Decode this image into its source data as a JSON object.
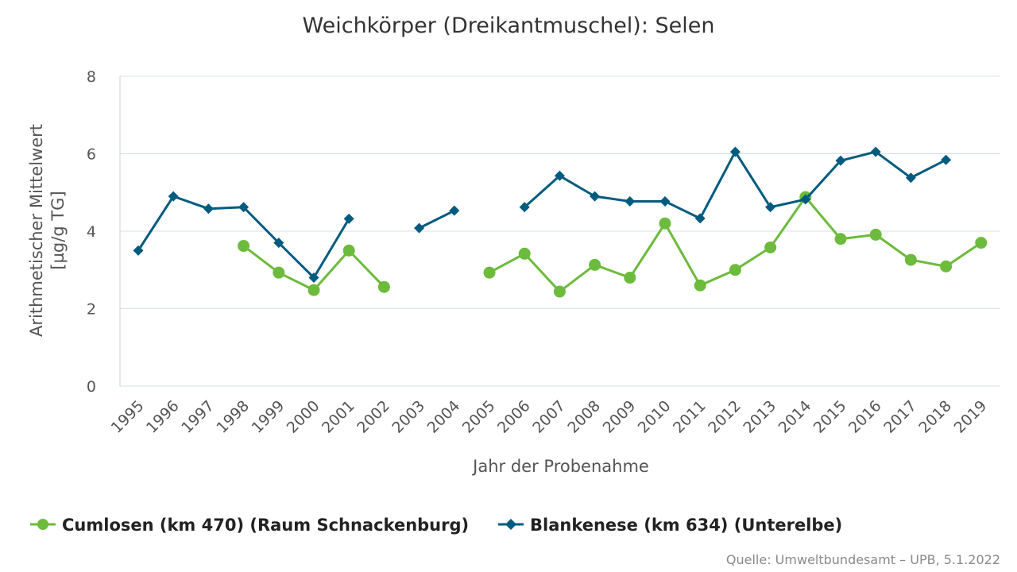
{
  "chart_data": {
    "type": "line",
    "title": "Weichkörper (Dreikantmuschel): Selen",
    "xlabel": "Jahr der Probenahme",
    "ylabel_line1": "Arithmetischer Mittelwert",
    "ylabel_line2": "[µg/g TG]",
    "ylim": [
      0,
      8
    ],
    "yticks": [
      0,
      2,
      4,
      6,
      8
    ],
    "grid": true,
    "categories": [
      "1995",
      "1996",
      "1997",
      "1998",
      "1999",
      "2000",
      "2001",
      "2002",
      "2003",
      "2004",
      "2005",
      "2006",
      "2007",
      "2008",
      "2009",
      "2010",
      "2011",
      "2012",
      "2013",
      "2014",
      "2015",
      "2016",
      "2017",
      "2018",
      "2019"
    ],
    "series": [
      {
        "name": "Cumlosen (km 470) (Raum Schnackenburg)",
        "color": "#6cbb3c",
        "marker": "circle",
        "values": [
          null,
          null,
          null,
          3.62,
          2.93,
          2.48,
          3.5,
          2.56,
          null,
          null,
          2.93,
          3.42,
          2.44,
          3.13,
          2.8,
          4.2,
          2.6,
          3.0,
          3.58,
          4.88,
          3.8,
          3.91,
          3.26,
          3.09,
          3.7
        ]
      },
      {
        "name": "Blankenese (km 634) (Unterelbe)",
        "color": "#005b7f",
        "marker": "diamond",
        "values": [
          3.5,
          4.9,
          4.58,
          4.62,
          3.7,
          2.8,
          4.32,
          null,
          4.08,
          4.53,
          null,
          4.62,
          5.43,
          4.9,
          4.77,
          4.77,
          4.33,
          6.05,
          4.62,
          4.82,
          5.82,
          6.05,
          5.38,
          5.84,
          null
        ]
      }
    ],
    "legend_position": "bottom"
  },
  "source": "Quelle: Umweltbundesamt – UPB, 5.1.2022"
}
